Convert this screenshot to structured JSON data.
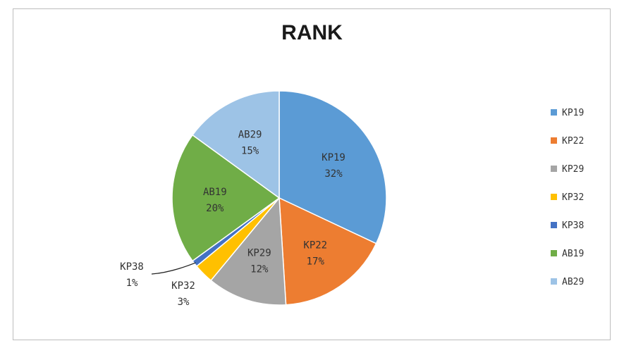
{
  "chart_data": {
    "type": "pie",
    "title": "RANK",
    "categories": [
      "KP19",
      "KP22",
      "KP29",
      "KP32",
      "KP38",
      "AB19",
      "AB29"
    ],
    "values": [
      32,
      17,
      12,
      3,
      1,
      20,
      15
    ],
    "data_labels": [
      "32%",
      "17%",
      "12%",
      "3%",
      "1%",
      "20%",
      "15%"
    ],
    "colors": [
      "#5B9BD5",
      "#ED7D31",
      "#A5A5A5",
      "#FFC000",
      "#4472C4",
      "#70AD47",
      "#9DC3E6"
    ],
    "legend_position": "right"
  }
}
